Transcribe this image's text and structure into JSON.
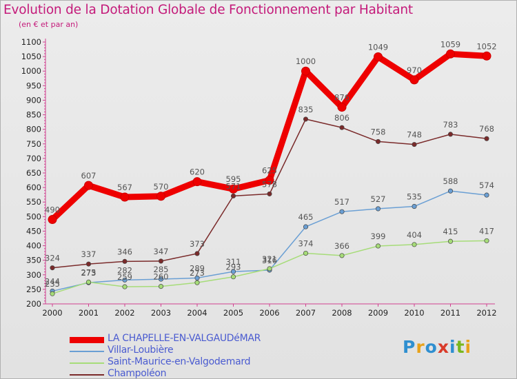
{
  "title": "Evolution de la Dotation Globale de Fonctionnement par Habitant",
  "subtitle": "(en € et par an)",
  "logo": {
    "text": "Proxiti",
    "colors": [
      "#2f8fd0",
      "#e8a21a",
      "#2f8fd0",
      "#d93b2a",
      "#2f8fd0",
      "#79b71e",
      "#e8a21a"
    ]
  },
  "chart_data": {
    "type": "line",
    "title": "Evolution de la Dotation Globale de Fonctionnement par Habitant",
    "subtitle": "(en € et par an)",
    "xlabel": "",
    "ylabel": "",
    "x": [
      "2000",
      "2001",
      "2002",
      "2003",
      "2004",
      "2005",
      "2006",
      "2007",
      "2008",
      "2009",
      "2010",
      "2011",
      "2012"
    ],
    "yticks": [
      200,
      250,
      300,
      350,
      400,
      450,
      500,
      550,
      600,
      650,
      700,
      750,
      800,
      850,
      900,
      950,
      1000,
      1050,
      1100
    ],
    "ylim": [
      200,
      1100
    ],
    "grid": false,
    "legend_position": "bottom-left",
    "series": [
      {
        "name": "LA CHAPELLE-EN-VALGAUDéMAR",
        "color": "#ee0000",
        "width": "thick",
        "markers": true,
        "values": [
          490,
          607,
          567,
          570,
          620,
          595,
          625,
          1000,
          876,
          1049,
          970,
          1059,
          1052
        ]
      },
      {
        "name": "Villar-Loubière",
        "color": "#6a9fd4",
        "width": "thin",
        "markers": true,
        "values": [
          244,
          273,
          282,
          285,
          289,
          311,
          316,
          465,
          517,
          527,
          535,
          588,
          574
        ]
      },
      {
        "name": "Saint-Maurice-en-Valgodemard",
        "color": "#a6dc78",
        "width": "thin",
        "markers": true,
        "values": [
          235,
          275,
          259,
          260,
          273,
          293,
          321,
          374,
          366,
          399,
          404,
          415,
          417
        ]
      },
      {
        "name": "Champoléon",
        "color": "#7a2a2a",
        "width": "thin",
        "markers": true,
        "values": [
          324,
          337,
          346,
          347,
          373,
          571,
          578,
          835,
          806,
          758,
          748,
          783,
          768
        ]
      }
    ]
  }
}
